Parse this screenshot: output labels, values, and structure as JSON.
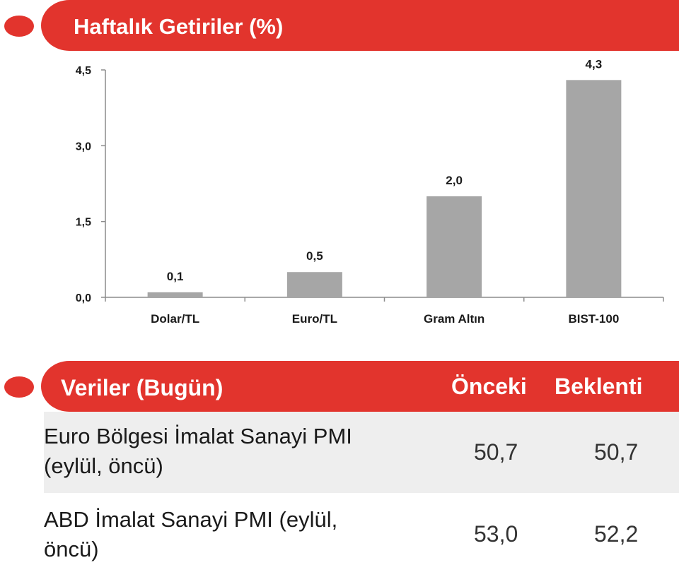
{
  "header_chart": {
    "title": "Haftalık Getiriler (%)"
  },
  "chart_data": {
    "type": "bar",
    "title": "Haftalık Getiriler (%)",
    "categories": [
      "Dolar/TL",
      "Euro/TL",
      "Gram Altın",
      "BIST-100"
    ],
    "values": [
      0.1,
      0.5,
      2.0,
      4.3
    ],
    "value_labels": [
      "0,1",
      "0,5",
      "2,0",
      "4,3"
    ],
    "ylim": [
      0,
      4.5
    ],
    "yticks": [
      0.0,
      1.5,
      3.0,
      4.5
    ],
    "ytick_labels": [
      "0,0",
      "1,5",
      "3,0",
      "4,5"
    ],
    "xlabel": "",
    "ylabel": "",
    "grid": false,
    "bar_color": "#a6a6a6"
  },
  "header_table": {
    "title": "Veriler (Bugün)",
    "col_prev": "Önceki",
    "col_exp": "Beklenti"
  },
  "table": {
    "rows": [
      {
        "line1": "Euro Bölgesi İmalat Sanayi PMI",
        "line2": "(eylül, öncü)",
        "prev": "50,7",
        "exp": "50,7"
      },
      {
        "line1": "ABD İmalat Sanayi PMI (eylül,",
        "line2": "öncü)",
        "prev": "53,0",
        "exp": "52,2"
      }
    ]
  },
  "colors": {
    "accent": "#e2342d",
    "row_shade": "#eeeeee"
  }
}
